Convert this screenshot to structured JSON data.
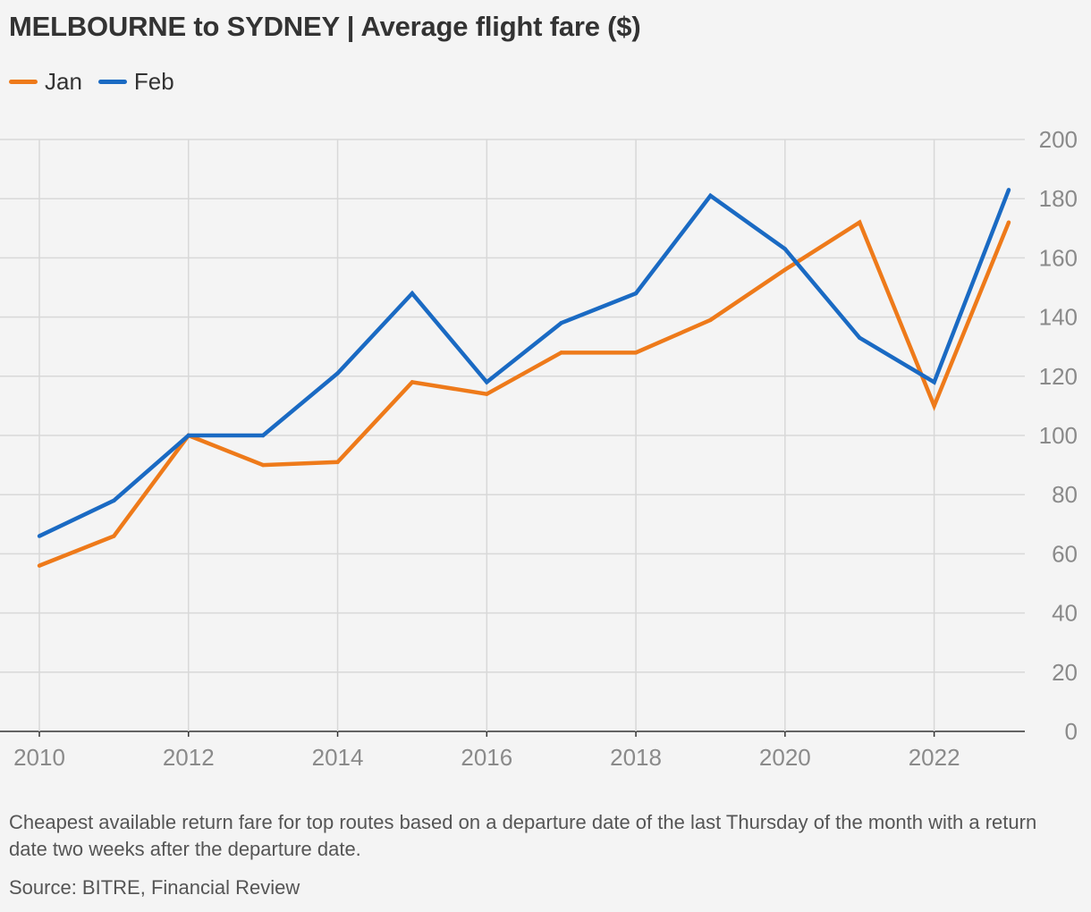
{
  "title": "MELBOURNE to SYDNEY | Average flight fare ($)",
  "legend": [
    {
      "label": "Jan",
      "color": "#ee7a1a"
    },
    {
      "label": "Feb",
      "color": "#1a6ac3"
    }
  ],
  "note": "Cheapest available return fare for top routes based on a departure date of the last Thursday of the month with a return date two weeks after the departure date.",
  "source": "Source: BITRE, Financial Review",
  "chart_data": {
    "type": "line",
    "title": "MELBOURNE to SYDNEY | Average flight fare ($)",
    "x": [
      2010,
      2011,
      2012,
      2013,
      2014,
      2015,
      2016,
      2017,
      2018,
      2019,
      2020,
      2021,
      2022,
      2023
    ],
    "series": [
      {
        "name": "Jan",
        "color": "#ee7a1a",
        "values": [
          56,
          66,
          100,
          90,
          91,
          118,
          114,
          128,
          128,
          139,
          156,
          172,
          110,
          172
        ]
      },
      {
        "name": "Feb",
        "color": "#1a6ac3",
        "values": [
          66,
          78,
          100,
          100,
          121,
          148,
          118,
          138,
          148,
          181,
          163,
          133,
          118,
          183
        ]
      }
    ],
    "xlim": [
      2010,
      2023
    ],
    "ylim": [
      0,
      200
    ],
    "xticks": [
      "2010",
      "2012",
      "2014",
      "2016",
      "2018",
      "2020",
      "2022"
    ],
    "yticks": [
      "0",
      "20",
      "40",
      "60",
      "80",
      "100",
      "120",
      "140",
      "160",
      "180",
      "200"
    ],
    "y_axis_side": "right",
    "grid": true,
    "legend_position": "top-left"
  }
}
